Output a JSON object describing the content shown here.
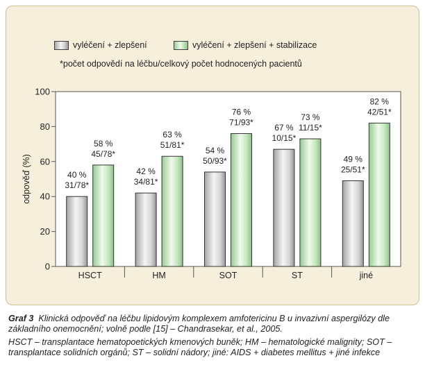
{
  "legend": {
    "item1": "vyléčení + zlepšení",
    "item2": "vyléčení + zlepšení + stabilizace"
  },
  "note": "*počet odpovědí na léčbu/celkový počet hodnocených pacientů",
  "chart_data": {
    "type": "bar",
    "categories": [
      "HSCT",
      "HM",
      "SOT",
      "ST",
      "jiné"
    ],
    "ylabel": "odpověď (%)",
    "ylim": [
      0,
      100
    ],
    "yticks": [
      "0",
      "20",
      "40",
      "60",
      "80",
      "100"
    ],
    "grid": false,
    "legend_position": "top-left",
    "series": [
      {
        "name": "vyléčení + zlepšení",
        "color": "#d3d3d3",
        "values": [
          40,
          42,
          54,
          67,
          49
        ],
        "labels_pct": [
          "40 %",
          "42 %",
          "54 %",
          "67 %",
          "49 %"
        ],
        "labels_count": [
          "31/78*",
          "34/81*",
          "50/93*",
          "10/15*",
          "25/51*"
        ]
      },
      {
        "name": "vyléčení + zlepšení + stabilizace",
        "color": "#d6efd0",
        "values": [
          58,
          63,
          76,
          73,
          82
        ],
        "labels_pct": [
          "58 %",
          "63 %",
          "76 %",
          "73 %",
          "82 %"
        ],
        "labels_count": [
          "45/78*",
          "51/81*",
          "71/93*",
          "11/15*",
          "42/51*"
        ]
      }
    ]
  },
  "caption": {
    "label": "Graf 3",
    "text": "Klinická odpověď na léčbu lipidovým komplexem amfotericinu B u invazivní aspergilózy dle základního onemocnění; volně podle [15] – Chandrasekar, et al., 2005.",
    "abbreviations": "HSCT – transplantace hematopoetických kmenových buněk; HM – hematologické malignity; SOT – transplantace solidních orgánů; ST – solidní nádory; jiné: AIDS + diabetes mellitus + jiné infekce"
  }
}
